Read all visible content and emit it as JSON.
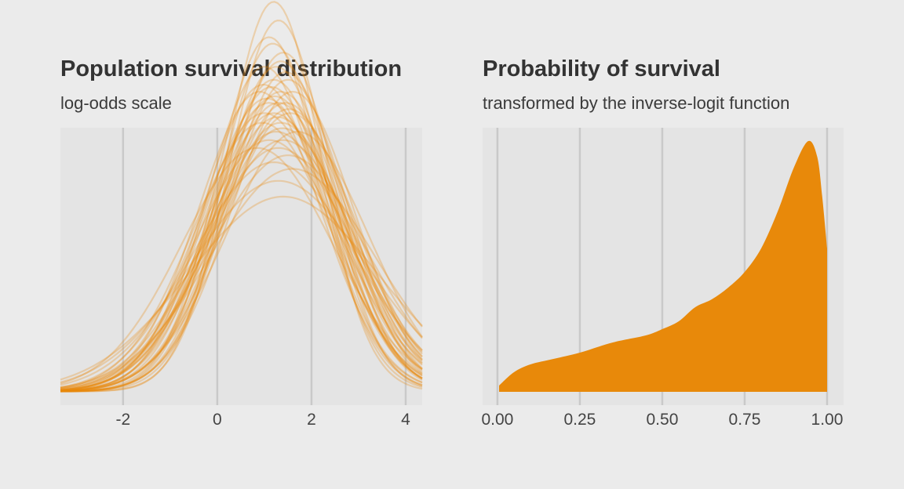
{
  "chart_data": [
    {
      "type": "line",
      "title": "Population survival distribution",
      "subtitle": "log-odds scale",
      "xlabel": "",
      "ylabel": "",
      "xlim": [
        -3.33,
        4.35
      ],
      "ylim": [
        -0.014,
        0.27
      ],
      "xticks": [
        -2,
        0,
        2,
        4
      ],
      "xtick_labels": [
        "-2",
        "0",
        "2",
        "4"
      ],
      "grid": "vertical",
      "color": "#e8890a",
      "series_note": "posterior draws of normal densities (mean, sd)",
      "series": [
        {
          "mu": 1.2,
          "sigma": 1.0
        },
        {
          "mu": 1.3,
          "sigma": 1.05
        },
        {
          "mu": 1.1,
          "sigma": 1.1
        },
        {
          "mu": 1.4,
          "sigma": 1.15
        },
        {
          "mu": 1.0,
          "sigma": 1.2
        },
        {
          "mu": 1.25,
          "sigma": 1.2
        },
        {
          "mu": 1.5,
          "sigma": 1.25
        },
        {
          "mu": 1.2,
          "sigma": 1.25
        },
        {
          "mu": 0.9,
          "sigma": 1.3
        },
        {
          "mu": 1.35,
          "sigma": 1.3
        },
        {
          "mu": 1.6,
          "sigma": 1.3
        },
        {
          "mu": 1.1,
          "sigma": 1.35
        },
        {
          "mu": 1.3,
          "sigma": 1.35
        },
        {
          "mu": 1.45,
          "sigma": 1.35
        },
        {
          "mu": 1.0,
          "sigma": 1.4
        },
        {
          "mu": 1.2,
          "sigma": 1.4
        },
        {
          "mu": 1.55,
          "sigma": 1.4
        },
        {
          "mu": 1.35,
          "sigma": 1.45
        },
        {
          "mu": 0.95,
          "sigma": 1.45
        },
        {
          "mu": 1.25,
          "sigma": 1.5
        },
        {
          "mu": 1.7,
          "sigma": 1.5
        },
        {
          "mu": 1.1,
          "sigma": 1.55
        },
        {
          "mu": 1.4,
          "sigma": 1.55
        },
        {
          "mu": 1.3,
          "sigma": 1.6
        },
        {
          "mu": 0.85,
          "sigma": 1.6
        },
        {
          "mu": 1.5,
          "sigma": 1.65
        },
        {
          "mu": 1.2,
          "sigma": 1.7
        },
        {
          "mu": 1.6,
          "sigma": 1.75
        },
        {
          "mu": 1.3,
          "sigma": 1.85
        },
        {
          "mu": 1.4,
          "sigma": 2.0
        },
        {
          "mu": 1.15,
          "sigma": 1.28
        },
        {
          "mu": 1.45,
          "sigma": 1.22
        },
        {
          "mu": 1.05,
          "sigma": 1.33
        },
        {
          "mu": 1.35,
          "sigma": 1.18
        },
        {
          "mu": 1.28,
          "sigma": 1.42
        },
        {
          "mu": 1.18,
          "sigma": 1.12
        },
        {
          "mu": 1.52,
          "sigma": 1.38
        },
        {
          "mu": 0.98,
          "sigma": 1.27
        },
        {
          "mu": 1.38,
          "sigma": 1.48
        },
        {
          "mu": 1.22,
          "sigma": 1.32
        }
      ]
    },
    {
      "type": "area",
      "title": "Probability of survival",
      "subtitle": "transformed by the inverse-logit function",
      "xlabel": "",
      "ylabel": "",
      "xlim": [
        -0.045,
        1.05
      ],
      "ylim": [
        -0.17,
        3.37
      ],
      "xticks": [
        0,
        0.25,
        0.5,
        0.75,
        1.0
      ],
      "xtick_labels": [
        "0.00",
        "0.25",
        "0.50",
        "0.75",
        "1.00"
      ],
      "grid": "vertical",
      "color": "#e8890a",
      "x": [
        0.005,
        0.05,
        0.1,
        0.17,
        0.25,
        0.35,
        0.45,
        0.5,
        0.55,
        0.6,
        0.65,
        0.7,
        0.75,
        0.8,
        0.85,
        0.9,
        0.943,
        0.97,
        0.985,
        1.0
      ],
      "y": [
        0.08,
        0.25,
        0.35,
        0.42,
        0.5,
        0.63,
        0.72,
        0.8,
        0.9,
        1.08,
        1.18,
        1.33,
        1.53,
        1.83,
        2.3,
        2.87,
        3.2,
        3.0,
        2.5,
        1.83
      ]
    }
  ]
}
